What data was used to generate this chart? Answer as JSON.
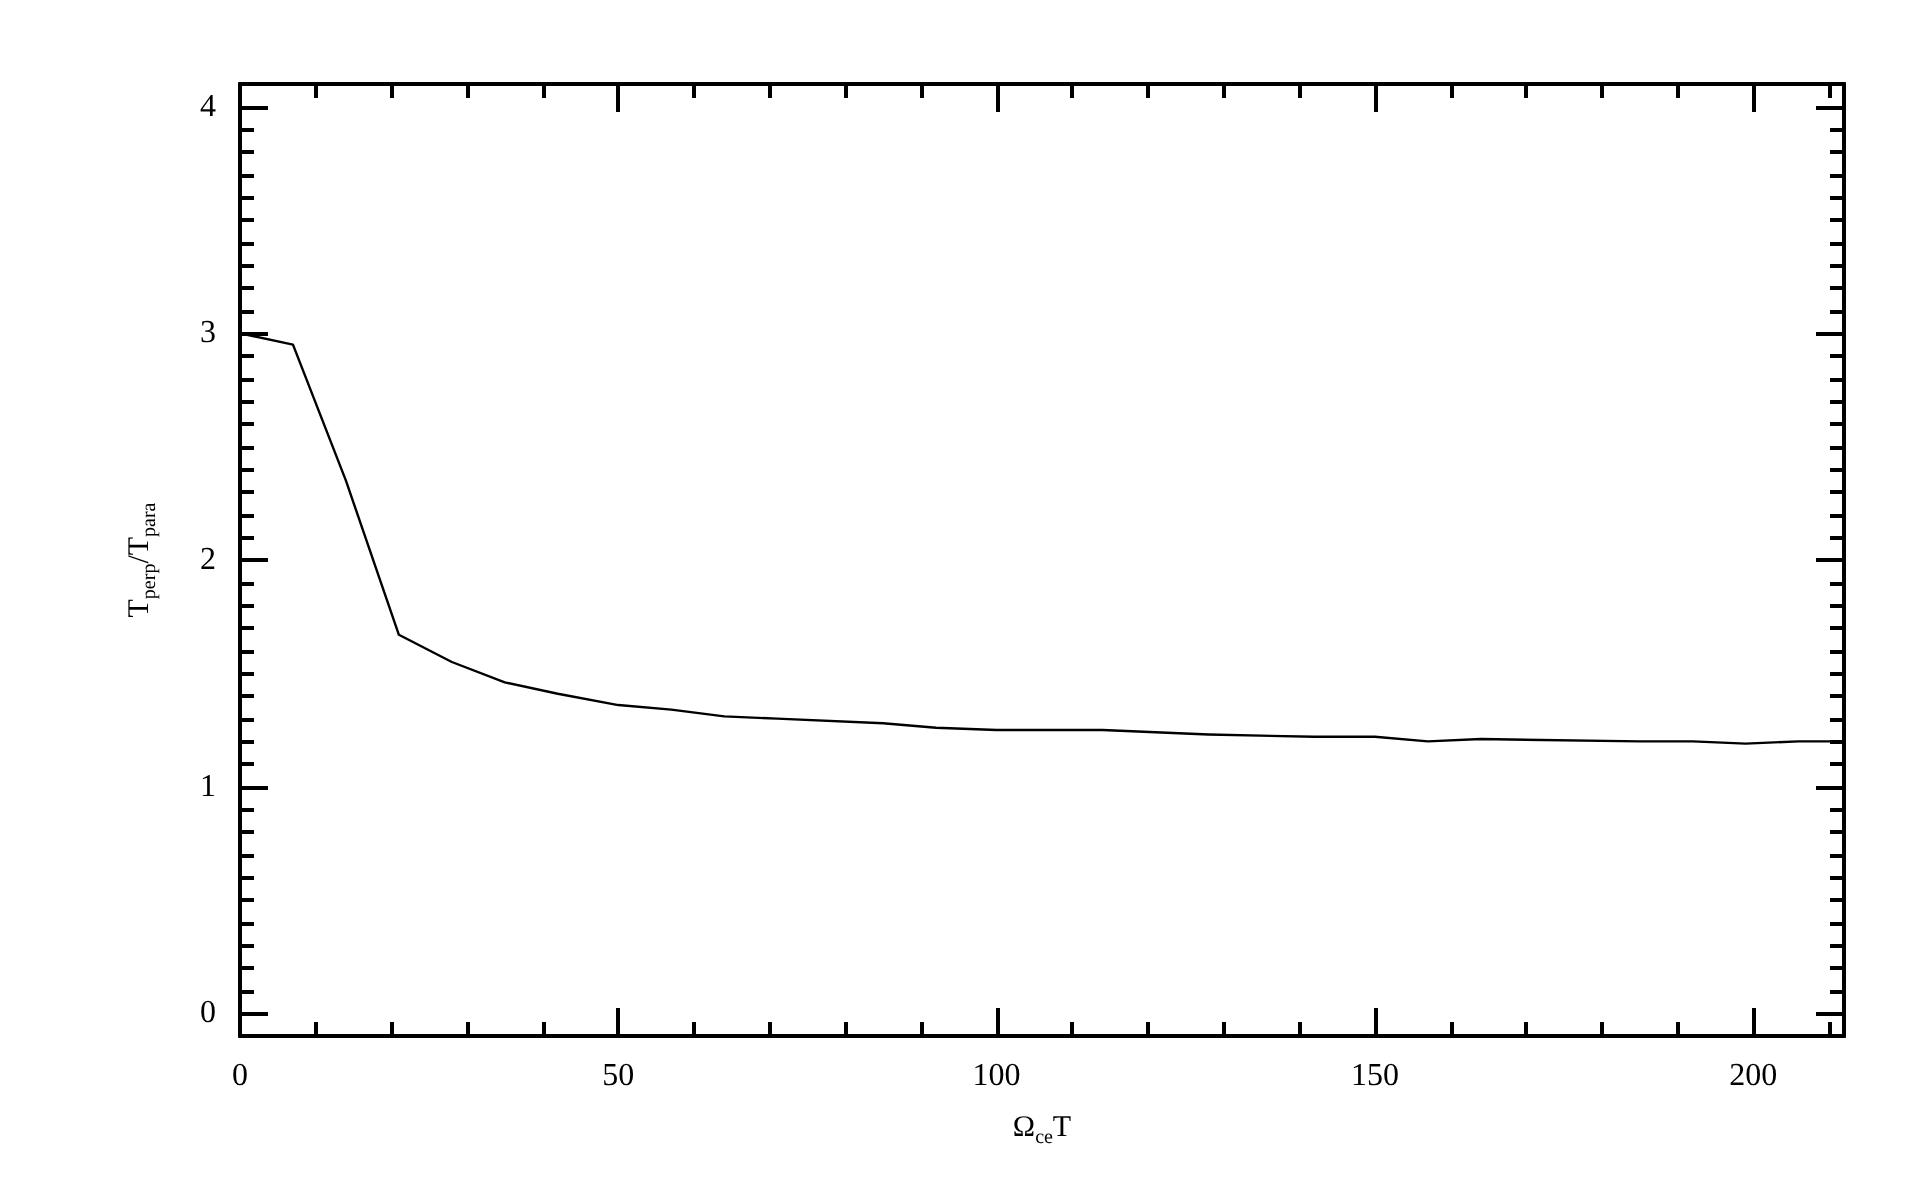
{
  "chart_data": {
    "type": "line",
    "xlabel": "Ω$_{ce}$T",
    "ylabel": "T$_{perp}$/T$_{para}$",
    "x": [
      0,
      7,
      14,
      21,
      28,
      35,
      42,
      50,
      57,
      64,
      71,
      85,
      92,
      100,
      114,
      128,
      142,
      150,
      157,
      164,
      185,
      192,
      199,
      206,
      212
    ],
    "series": [
      {
        "color": "#000000",
        "values": [
          3.0,
          2.95,
          2.35,
          1.67,
          1.55,
          1.46,
          1.41,
          1.36,
          1.34,
          1.31,
          1.3,
          1.28,
          1.26,
          1.25,
          1.25,
          1.23,
          1.22,
          1.22,
          1.2,
          1.21,
          1.2,
          1.2,
          1.19,
          1.2,
          1.2
        ]
      }
    ],
    "xlim": [
      0,
      212
    ],
    "xticks": [
      0,
      50,
      100,
      150,
      200
    ],
    "ylim": [
      -0.1,
      4.1
    ],
    "yticks": [
      0,
      1,
      2,
      3,
      4
    ],
    "grid": false,
    "marker": "none",
    "line_style": "solid"
  }
}
